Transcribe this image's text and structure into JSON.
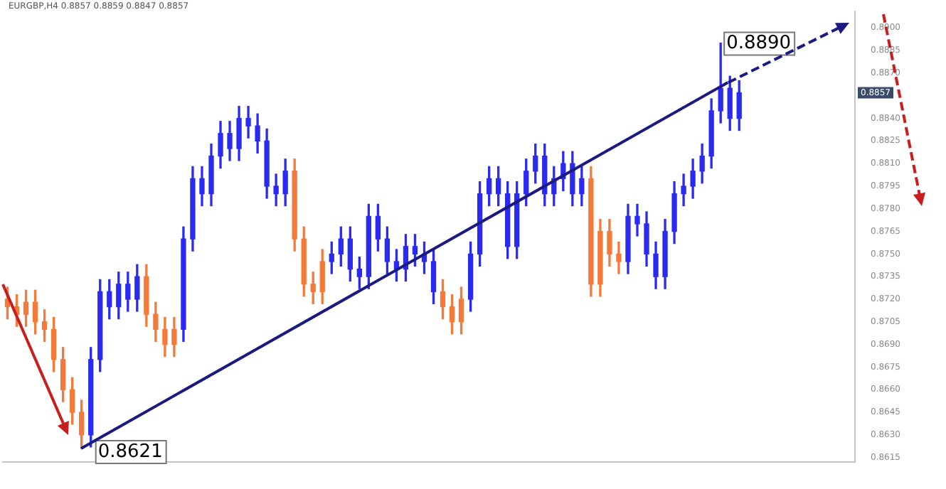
{
  "chart_data": {
    "type": "candlestick",
    "title": "EURGBP,H4  0.8857 0.8859 0.8847 0.8857",
    "categories": [
      null,
      null,
      null,
      null,
      null,
      null,
      null,
      null,
      null,
      null,
      null,
      null,
      null,
      null,
      null,
      null,
      null,
      null,
      null,
      null,
      null,
      null,
      null,
      null,
      null,
      null,
      null,
      null,
      null,
      null,
      null,
      null,
      null,
      null,
      null,
      null,
      null,
      null,
      null,
      null,
      null,
      null,
      null,
      null,
      null,
      null,
      null,
      null,
      null,
      null,
      null,
      null,
      null,
      null,
      null,
      null,
      null,
      null,
      null,
      null,
      null,
      null,
      null,
      null,
      null,
      null,
      null,
      null,
      null,
      null,
      null,
      null,
      null,
      null,
      null,
      null,
      null,
      null,
      null,
      null,
      null,
      null,
      null,
      null,
      null,
      null,
      null,
      null,
      null,
      null,
      null,
      null
    ],
    "ohlc": [
      [
        0.872,
        0.8728,
        0.8707,
        0.8715
      ],
      [
        0.8715,
        0.8723,
        0.8702,
        0.871
      ],
      [
        0.8718,
        0.8726,
        0.8702,
        0.871
      ],
      [
        0.8718,
        0.8726,
        0.8697,
        0.8705
      ],
      [
        0.8705,
        0.8713,
        0.8692,
        0.87
      ],
      [
        0.87,
        0.8708,
        0.8672,
        0.868
      ],
      [
        0.868,
        0.8688,
        0.8652,
        0.866
      ],
      [
        0.866,
        0.8668,
        0.8637,
        0.8645
      ],
      [
        0.8645,
        0.8653,
        0.8621,
        0.863
      ],
      [
        0.863,
        0.8688,
        0.8622,
        0.868
      ],
      [
        0.868,
        0.8733,
        0.8672,
        0.8725
      ],
      [
        0.8715,
        0.8733,
        0.8707,
        0.8725
      ],
      [
        0.8715,
        0.8738,
        0.8707,
        0.873
      ],
      [
        0.872,
        0.8738,
        0.8712,
        0.873
      ],
      [
        0.872,
        0.8743,
        0.8712,
        0.8735
      ],
      [
        0.8735,
        0.8743,
        0.8702,
        0.871
      ],
      [
        0.871,
        0.8718,
        0.8692,
        0.87
      ],
      [
        0.87,
        0.8708,
        0.8682,
        0.869
      ],
      [
        0.87,
        0.8708,
        0.8682,
        0.869
      ],
      [
        0.87,
        0.8768,
        0.8692,
        0.876
      ],
      [
        0.876,
        0.8808,
        0.8752,
        0.88
      ],
      [
        0.879,
        0.8808,
        0.8782,
        0.88
      ],
      [
        0.879,
        0.8823,
        0.8782,
        0.8815
      ],
      [
        0.8815,
        0.8838,
        0.8807,
        0.883
      ],
      [
        0.882,
        0.8838,
        0.8812,
        0.883
      ],
      [
        0.882,
        0.8848,
        0.8812,
        0.884
      ],
      [
        0.8835,
        0.8848,
        0.8827,
        0.884
      ],
      [
        0.8825,
        0.8843,
        0.8817,
        0.8835
      ],
      [
        0.8795,
        0.8833,
        0.8787,
        0.8825
      ],
      [
        0.879,
        0.8803,
        0.8782,
        0.8795
      ],
      [
        0.879,
        0.8813,
        0.8782,
        0.8805
      ],
      [
        0.8805,
        0.8813,
        0.8752,
        0.876
      ],
      [
        0.876,
        0.8768,
        0.8722,
        0.873
      ],
      [
        0.873,
        0.8738,
        0.8717,
        0.8725
      ],
      [
        0.8745,
        0.8753,
        0.8717,
        0.8725
      ],
      [
        0.8745,
        0.8758,
        0.8737,
        0.875
      ],
      [
        0.875,
        0.8768,
        0.8742,
        0.876
      ],
      [
        0.874,
        0.8768,
        0.8732,
        0.876
      ],
      [
        0.8735,
        0.8748,
        0.8727,
        0.874
      ],
      [
        0.8735,
        0.8783,
        0.8727,
        0.8775
      ],
      [
        0.876,
        0.8783,
        0.8752,
        0.8775
      ],
      [
        0.8745,
        0.8768,
        0.8737,
        0.876
      ],
      [
        0.874,
        0.8753,
        0.8732,
        0.8745
      ],
      [
        0.874,
        0.8763,
        0.8732,
        0.8755
      ],
      [
        0.875,
        0.8763,
        0.8742,
        0.8755
      ],
      [
        0.8745,
        0.8758,
        0.8737,
        0.875
      ],
      [
        0.8725,
        0.8753,
        0.8717,
        0.8745
      ],
      [
        0.8725,
        0.8733,
        0.8707,
        0.8715
      ],
      [
        0.8715,
        0.8723,
        0.8697,
        0.8705
      ],
      [
        0.872,
        0.8728,
        0.8697,
        0.8705
      ],
      [
        0.872,
        0.8758,
        0.8712,
        0.875
      ],
      [
        0.875,
        0.8798,
        0.8742,
        0.879
      ],
      [
        0.879,
        0.8808,
        0.8782,
        0.88
      ],
      [
        0.879,
        0.8808,
        0.8782,
        0.88
      ],
      [
        0.8755,
        0.8798,
        0.8747,
        0.879
      ],
      [
        0.8755,
        0.8798,
        0.8747,
        0.879
      ],
      [
        0.879,
        0.8813,
        0.8782,
        0.8805
      ],
      [
        0.8805,
        0.8823,
        0.8797,
        0.8815
      ],
      [
        0.879,
        0.8823,
        0.8782,
        0.8815
      ],
      [
        0.879,
        0.8808,
        0.8782,
        0.88
      ],
      [
        0.88,
        0.8818,
        0.8792,
        0.881
      ],
      [
        0.879,
        0.8818,
        0.8782,
        0.881
      ],
      [
        0.879,
        0.8808,
        0.8782,
        0.88
      ],
      [
        0.88,
        0.8808,
        0.8722,
        0.873
      ],
      [
        0.8765,
        0.8773,
        0.8722,
        0.873
      ],
      [
        0.8765,
        0.8773,
        0.8742,
        0.875
      ],
      [
        0.875,
        0.8758,
        0.8737,
        0.8745
      ],
      [
        0.8745,
        0.8783,
        0.8737,
        0.8775
      ],
      [
        0.877,
        0.8783,
        0.8762,
        0.8775
      ],
      [
        0.875,
        0.8778,
        0.8742,
        0.877
      ],
      [
        0.8735,
        0.8758,
        0.8727,
        0.875
      ],
      [
        0.8735,
        0.8773,
        0.8727,
        0.8765
      ],
      [
        0.8765,
        0.8798,
        0.8757,
        0.879
      ],
      [
        0.879,
        0.8803,
        0.8782,
        0.8795
      ],
      [
        0.8795,
        0.8813,
        0.8787,
        0.8805
      ],
      [
        0.8805,
        0.8823,
        0.8797,
        0.8815
      ],
      [
        0.8815,
        0.8853,
        0.8807,
        0.8845
      ],
      [
        0.8845,
        0.889,
        0.8837,
        0.886
      ],
      [
        0.884,
        0.8868,
        0.8832,
        0.886
      ],
      [
        0.884,
        0.8865,
        0.8832,
        0.8857
      ],
      null,
      null,
      null,
      null,
      null,
      null,
      null,
      null,
      null,
      null,
      null,
      null
    ],
    "colors": [
      "#f47a3a",
      "#f47a3a",
      "#f47a3a",
      "#f47a3a",
      "#f47a3a",
      "#f47a3a",
      "#f47a3a",
      "#f47a3a",
      "#f47a3a",
      "#2a2af0",
      "#2a2af0",
      "#2a2af0",
      "#2a2af0",
      "#2a2af0",
      "#2a2af0",
      "#f47a3a",
      "#f47a3a",
      "#f47a3a",
      "#f47a3a",
      "#2a2af0",
      "#2a2af0",
      "#2a2af0",
      "#2a2af0",
      "#2a2af0",
      "#2a2af0",
      "#2a2af0",
      "#2a2af0",
      "#2a2af0",
      "#2a2af0",
      "#2a2af0",
      "#2a2af0",
      "#f47a3a",
      "#f47a3a",
      "#f47a3a",
      "#f47a3a",
      "#2a2af0",
      "#2a2af0",
      "#2a2af0",
      "#2a2af0",
      "#2a2af0",
      "#2a2af0",
      "#2a2af0",
      "#2a2af0",
      "#2a2af0",
      "#2a2af0",
      "#2a2af0",
      "#2a2af0",
      "#f47a3a",
      "#f47a3a",
      "#f47a3a",
      "#2a2af0",
      "#2a2af0",
      "#2a2af0",
      "#2a2af0",
      "#2a2af0",
      "#2a2af0",
      "#2a2af0",
      "#2a2af0",
      "#2a2af0",
      "#2a2af0",
      "#2a2af0",
      "#2a2af0",
      "#2a2af0",
      "#f47a3a",
      "#f47a3a",
      "#f47a3a",
      "#f47a3a",
      "#2a2af0",
      "#2a2af0",
      "#2a2af0",
      "#2a2af0",
      "#2a2af0",
      "#2a2af0",
      "#2a2af0",
      "#2a2af0",
      "#2a2af0",
      "#2a2af0",
      "#2a2af0",
      "#2a2af0",
      "#2a2af0",
      null,
      null,
      null,
      null,
      null,
      null,
      null,
      null,
      null,
      null,
      null,
      null
    ],
    "ylim": [
      0.8612,
      0.8911
    ],
    "yticks": [
      {
        "value": 0.8615,
        "label": "0.8615"
      },
      {
        "value": 0.863,
        "label": "0.8630"
      },
      {
        "value": 0.8645,
        "label": "0.8645"
      },
      {
        "value": 0.866,
        "label": "0.8660"
      },
      {
        "value": 0.8675,
        "label": "0.8675"
      },
      {
        "value": 0.869,
        "label": "0.8690"
      },
      {
        "value": 0.8705,
        "label": "0.8705"
      },
      {
        "value": 0.872,
        "label": "0.8720"
      },
      {
        "value": 0.8735,
        "label": "0.8735"
      },
      {
        "value": 0.875,
        "label": "0.8750"
      },
      {
        "value": 0.8765,
        "label": "0.8765"
      },
      {
        "value": 0.878,
        "label": "0.8780"
      },
      {
        "value": 0.8795,
        "label": "0.8795"
      },
      {
        "value": 0.881,
        "label": "0.8810"
      },
      {
        "value": 0.8825,
        "label": "0.8825"
      },
      {
        "value": 0.884,
        "label": "0.8840"
      },
      {
        "value": 0.887,
        "label": "0.8870"
      },
      {
        "value": 0.8885,
        "label": "0.8885"
      },
      {
        "value": 0.89,
        "label": "0.8900"
      }
    ],
    "tick_labels": "y",
    "annotations": [
      "0.8621",
      "0.8890",
      {
        "text": "0.8857",
        "y": 0.8857
      }
    ]
  }
}
